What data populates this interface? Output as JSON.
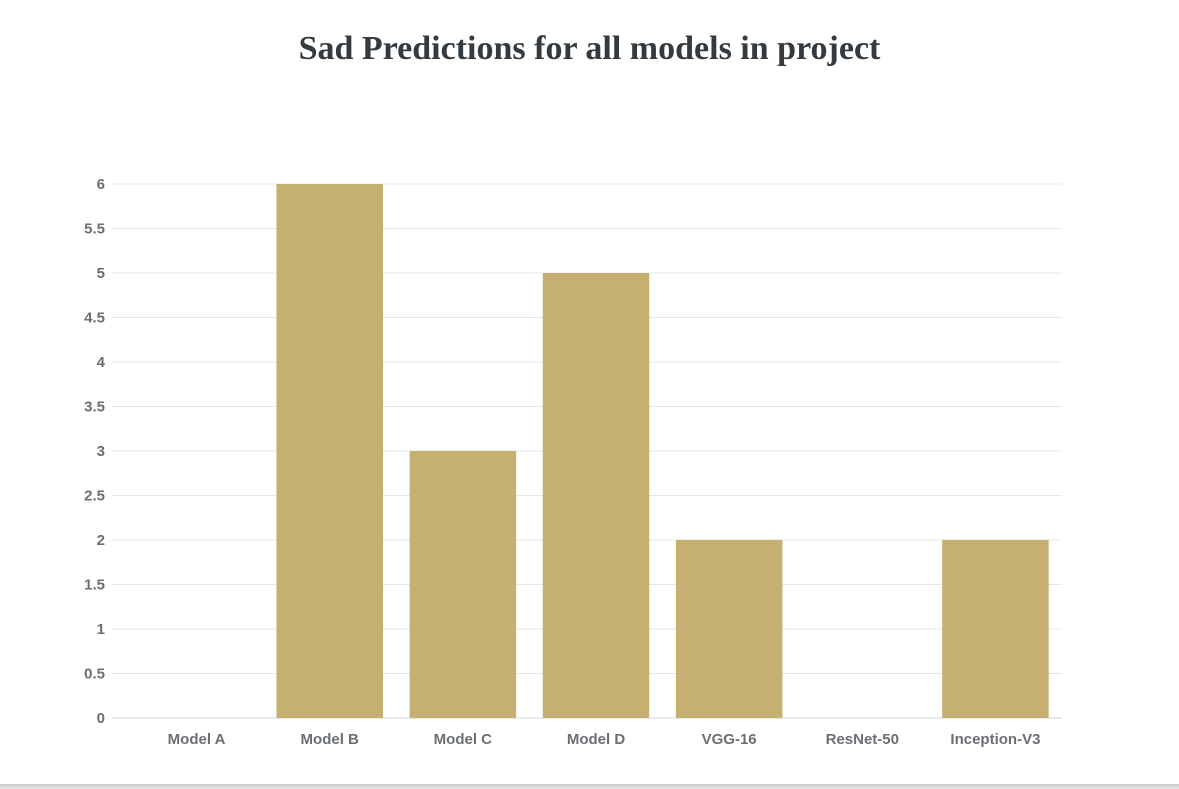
{
  "chart_data": {
    "type": "bar",
    "title": "Sad Predictions for all models in project",
    "categories": [
      "Model A",
      "Model B",
      "Model C",
      "Model D",
      "VGG-16",
      "ResNet-50",
      "Inception-V3"
    ],
    "values": [
      0,
      6,
      3,
      5,
      2,
      0,
      2
    ],
    "xlabel": "",
    "ylabel": "",
    "ylim": [
      0,
      6
    ],
    "yticks": [
      "0",
      "0.5",
      "1",
      "1.5",
      "2",
      "2.5",
      "3",
      "3.5",
      "4",
      "4.5",
      "5",
      "5.5",
      "6"
    ],
    "grid": true,
    "legend": "none",
    "colors": {
      "bar": "#c5b072",
      "grid": "#e3e7ec",
      "tick_text": "#6b6f73",
      "title": "#333b40"
    }
  }
}
